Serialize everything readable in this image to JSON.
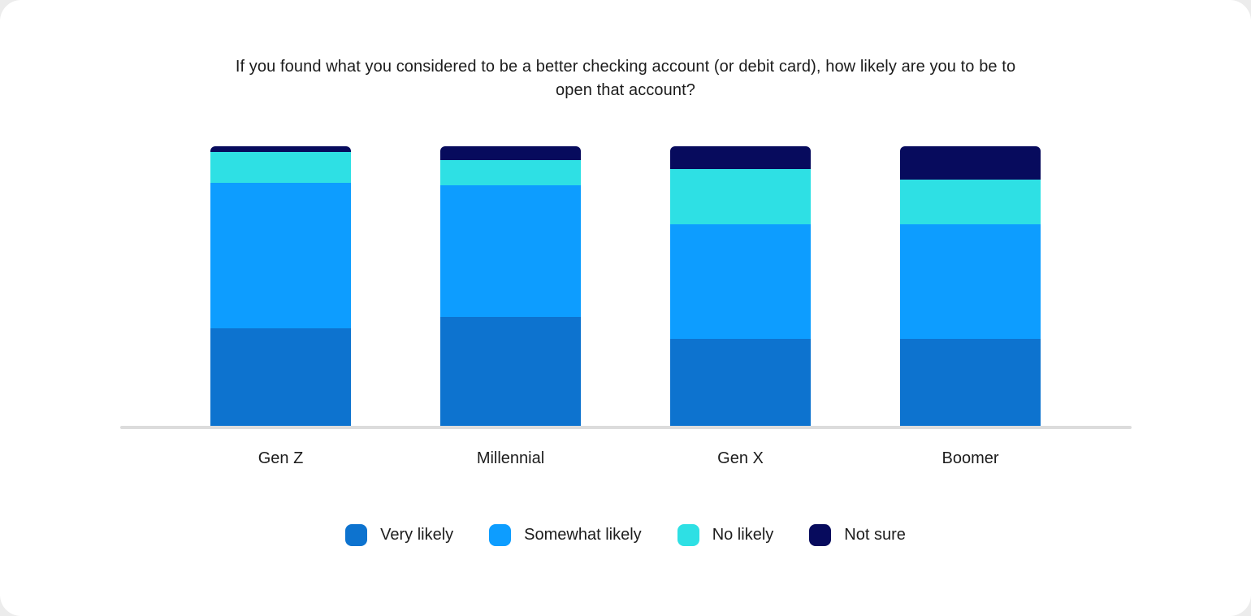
{
  "page": {
    "background_color": "#ececec",
    "card_color": "#ffffff",
    "axis_line_color": "#dcdcdc"
  },
  "chart_data": {
    "type": "bar",
    "variant": "stacked-percent",
    "title": "If you found what you considered to be a better checking account (or debit card), how likely are you to be to open that account?",
    "categories": [
      "Gen Z",
      "Millennial",
      "Gen X",
      "Boomer"
    ],
    "series": [
      {
        "name": "Very likely",
        "color": "#0d73cf",
        "values": [
          35,
          39,
          31,
          31
        ]
      },
      {
        "name": "Somewhat likely",
        "color": "#0d9dff",
        "values": [
          52,
          47,
          41,
          41
        ]
      },
      {
        "name": "No likely",
        "color": "#2ee0e4",
        "values": [
          11,
          9,
          20,
          16
        ]
      },
      {
        "name": "Not sure",
        "color": "#070b5d",
        "values": [
          2,
          5,
          8,
          12
        ]
      }
    ],
    "ylim": [
      0,
      100
    ],
    "grid": false,
    "y_axis_visible": false,
    "legend_position": "bottom",
    "xlabel": "",
    "ylabel": ""
  }
}
